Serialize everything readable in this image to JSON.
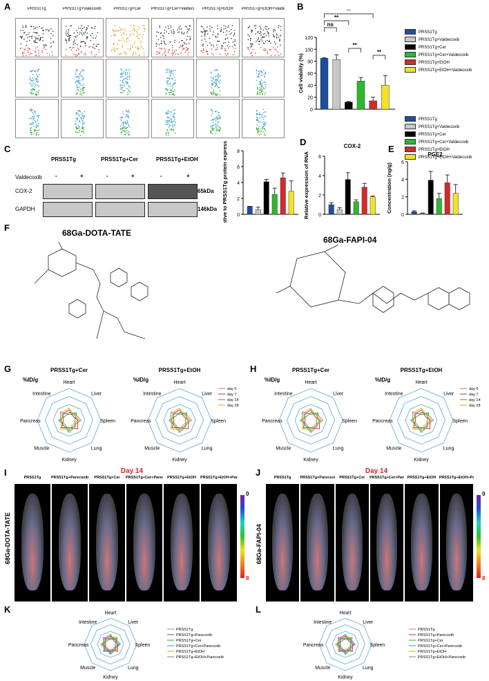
{
  "panels": {
    "A": "A",
    "B": "B",
    "C": "C",
    "D": "D",
    "E": "E",
    "F": "F",
    "G": "G",
    "H": "H",
    "I": "I",
    "J": "J",
    "K": "K",
    "L": "L"
  },
  "flow": {
    "groups": [
      "PRSS1Tg",
      "PRSS1Tg+Valecoxib",
      "PRSS1Tg+Cer",
      "PRSS1Tg+Cer+Valdecoxib",
      "PRSS1Tg+EtOH",
      "PRSS1Tg+EtOH+Valdecoxib"
    ]
  },
  "colors": {
    "blue": "#1f4e9c",
    "gray": "#c8c8c8",
    "black": "#000000",
    "green": "#2eb82e",
    "red": "#d42a2a",
    "yellow": "#f2e326"
  },
  "panelB": {
    "ylabel": "Cell viability (%)",
    "legend": [
      "PRSS1Tg",
      "PRSS1Tg+Valdecoxib",
      "PRSS1Tg+Cer",
      "PRSS1Tg+Cer+Valdecoxib",
      "PRSS1Tg+EtOH",
      "PRSS1Tg+EtOH+Valdecoxib"
    ],
    "sig": [
      "ns",
      "**",
      "**",
      "**",
      "**"
    ]
  },
  "legendDE": [
    "PRSS1Tg",
    "PRSS1Tg+Valdecoxib",
    "PRSS1Tg+Cer",
    "PRSS1Tg+Cer+Valdecoxib",
    "PRSS1Tg+EtOH",
    "PRSS1Tg+EtOH+Valdecoxib"
  ],
  "panelC": {
    "groups": [
      "PRSS1Tg",
      "PRSS1Tg+Cer",
      "PRSS1Tg+EtOH"
    ],
    "row_label": "Valdecoxib",
    "signs": [
      "-",
      "+",
      "-",
      "+",
      "-",
      "+"
    ],
    "bands": [
      "COX-2",
      "GAPDH"
    ],
    "kda": [
      "65kDa",
      "146kDa"
    ],
    "ylabel": "Relative to PRSS1Tg protein expression"
  },
  "panelD": {
    "title": "COX-2",
    "ylabel": "Relative expression of RNA"
  },
  "panelE": {
    "title": "PGE2",
    "ylabel": "Concentration (ng/g)"
  },
  "panelF": {
    "left_title": "68Ga-DOTA-TATE",
    "right_title": "68Ga-FAPI-04"
  },
  "radar": {
    "axes": [
      "Heart",
      "Liver",
      "Spleen",
      "Lung",
      "Kidney",
      "Muscle",
      "Pancreas",
      "Intestine"
    ],
    "unit": "%ID/g",
    "day_legend": [
      "day 0",
      "day 7",
      "day 14",
      "day 28"
    ],
    "G_titles": [
      "PRSS1Tg+Cer",
      "PRSS1Tg+EtOH"
    ],
    "H_titles": [
      "PRSS1Tg+Cer",
      "PRSS1Tg+EtOH"
    ],
    "K_legend": [
      "PRSS1Tg",
      "PRSS1Tg+Parecoxib",
      "PRSS1Tg+Cer",
      "PRSS1Tg+Cer+Parecoxib",
      "PRSS1Tg+EtOH",
      "PRSS1Tg+EtOH+Parecoxib"
    ]
  },
  "imaging": {
    "I_label": "68Ga-DOTA-TATE",
    "J_label": "68Ga-FAPI-04",
    "day_header": "Day 14",
    "groups": [
      "PRSS1Tg",
      "PRSS1Tg+Parecoxib",
      "PRSS1Tg+Cer",
      "PRSS1Tg+Cer+Parecoxib",
      "PRSS1Tg+EtOH",
      "PRSS1Tg+EtOH+Parecoxib"
    ],
    "scale": [
      "0",
      "8"
    ]
  },
  "chart_data": [
    {
      "type": "bar",
      "name": "B",
      "categories": [
        "PRSS1Tg",
        "PRSS1Tg+Valdecoxib",
        "PRSS1Tg+Cer",
        "PRSS1Tg+Cer+Valdecoxib",
        "PRSS1Tg+EtOH",
        "PRSS1Tg+EtOH+Valdecoxib"
      ],
      "values": [
        85,
        83,
        12,
        47,
        14,
        40
      ],
      "errors": [
        1,
        8,
        1,
        6,
        6,
        16
      ],
      "ylim": [
        0,
        120
      ],
      "yticks": [
        0,
        20,
        40,
        60,
        80,
        100,
        120
      ],
      "ylabel": "Cell viability (%)"
    },
    {
      "type": "bar",
      "name": "C",
      "categories": [
        "PRSS1Tg",
        "PRSS1Tg+Valdecoxib",
        "PRSS1Tg+Cer",
        "PRSS1Tg+Cer+Valdecoxib",
        "PRSS1Tg+EtOH",
        "PRSS1Tg+EtOH+Valdecoxib"
      ],
      "values": [
        1,
        0.6,
        4.1,
        2.5,
        4.6,
        2.9
      ],
      "errors": [
        0,
        0.3,
        0.3,
        0.8,
        0.6,
        1.3
      ],
      "ylim": [
        0,
        8
      ],
      "yticks": [
        0,
        2,
        4,
        6,
        8
      ],
      "ylabel": "Relative to PRSS1Tg protein expression"
    },
    {
      "type": "bar",
      "name": "D",
      "categories": [
        "PRSS1Tg",
        "PRSS1Tg+Valdecoxib",
        "PRSS1Tg+Cer",
        "PRSS1Tg+Cer+Valdecoxib",
        "PRSS1Tg+EtOH",
        "PRSS1Tg+EtOH+Valdecoxib"
      ],
      "values": [
        1,
        0.5,
        3.6,
        1.3,
        2.8,
        1.8
      ],
      "errors": [
        0.2,
        0.2,
        0.7,
        0.2,
        0.4,
        0.1
      ],
      "ylim": [
        0,
        6
      ],
      "yticks": [
        0,
        2,
        4,
        6
      ],
      "ylabel": "Relative expression of RNA",
      "title": "COX-2"
    },
    {
      "type": "bar",
      "name": "E",
      "categories": [
        "PRSS1Tg",
        "PRSS1Tg+Valdecoxib",
        "PRSS1Tg+Cer",
        "PRSS1Tg+Cer+Valdecoxib",
        "PRSS1Tg+EtOH",
        "PRSS1Tg+EtOH+Valdecoxib"
      ],
      "values": [
        0.3,
        0.1,
        3.9,
        1.8,
        3.6,
        2.4
      ],
      "errors": [
        0.1,
        0.05,
        1.0,
        0.6,
        0.9,
        1.0
      ],
      "ylim": [
        0,
        6
      ],
      "yticks": [
        0,
        2,
        4,
        6
      ],
      "ylabel": "Concentration (ng/g)",
      "title": "PGE2"
    }
  ]
}
